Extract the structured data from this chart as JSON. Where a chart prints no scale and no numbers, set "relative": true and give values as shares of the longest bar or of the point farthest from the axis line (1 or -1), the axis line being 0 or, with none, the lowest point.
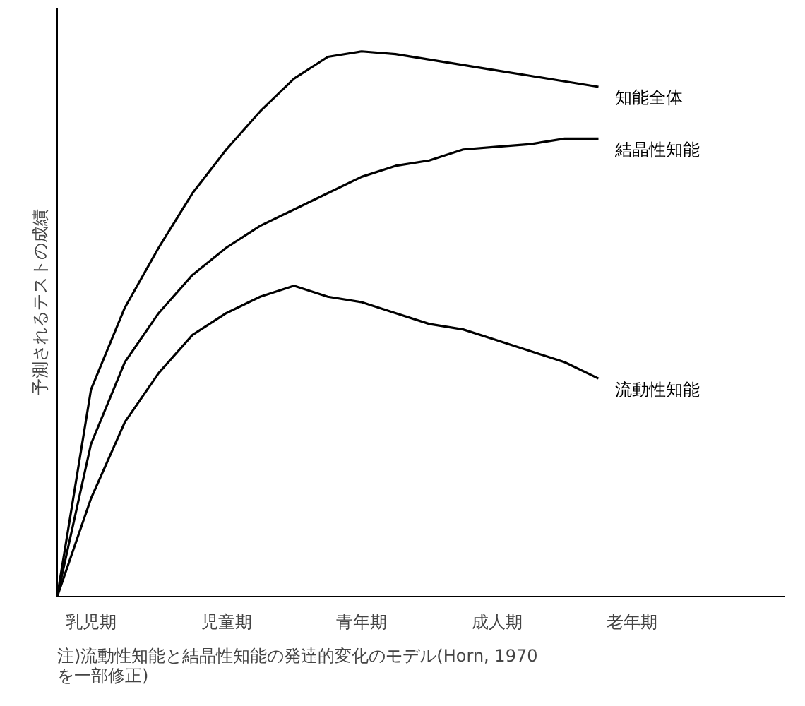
{
  "chart_data": {
    "type": "line",
    "relative": true,
    "ylabel": "予測されるテストの成績",
    "categories": [
      null,
      "乳児期",
      null,
      null,
      null,
      "児童期",
      null,
      null,
      null,
      "青年期",
      null,
      null,
      null,
      "成人期",
      null,
      null,
      null,
      "老年期"
    ],
    "series": [
      {
        "name": "知能全体",
        "color": "#000000",
        "values": [
          0,
          0.38,
          0.53,
          0.64,
          0.74,
          0.82,
          0.89,
          0.95,
          0.99,
          1.0,
          0.995,
          0.985,
          0.975,
          0.965,
          0.955,
          0.945,
          0.935,
          null
        ]
      },
      {
        "name": "結晶性知能",
        "color": "#000000",
        "values": [
          0,
          0.28,
          0.43,
          0.52,
          0.59,
          0.64,
          0.68,
          0.71,
          0.74,
          0.77,
          0.79,
          0.8,
          0.82,
          0.825,
          0.83,
          0.84,
          0.84,
          null
        ]
      },
      {
        "name": "流動性知能",
        "color": "#000000",
        "values": [
          0,
          0.18,
          0.32,
          0.41,
          0.48,
          0.52,
          0.55,
          0.57,
          0.55,
          0.54,
          0.52,
          0.5,
          0.49,
          0.47,
          0.45,
          0.43,
          0.4,
          null
        ]
      }
    ],
    "annotations": [
      "注)流動性知能と結晶性知能の発達的変化のモデル(Horn, 1970\nを一部修正)"
    ],
    "legend": false,
    "marker": "none",
    "line_style": "solid"
  }
}
